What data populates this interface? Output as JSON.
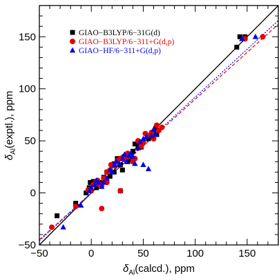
{
  "chart_data": {
    "type": "scatter",
    "xlabel": {
      "prefix": "δ",
      "sub": "Al",
      "suffix": "(calcd.), ppm"
    },
    "ylabel": {
      "prefix": "δ",
      "sub": "Al",
      "suffix": "(exptl.), ppm"
    },
    "xlim": [
      -50,
      180
    ],
    "ylim": [
      -50,
      180
    ],
    "xticks": [
      -50,
      0,
      50,
      100,
      150
    ],
    "yticks": [
      -50,
      0,
      50,
      100,
      150
    ],
    "grid": false,
    "legend_position": "top-left",
    "reference_line": {
      "slope": 1,
      "intercept": 0,
      "color": "#000000"
    },
    "series": [
      {
        "name": "GIAO−B3LYP/6−31G(d)",
        "marker": "square",
        "color": "#000000",
        "fit": null,
        "points": [
          [
            -33,
            -22
          ],
          [
            -15,
            -10
          ],
          [
            -5,
            0
          ],
          [
            -2,
            5
          ],
          [
            -1,
            10
          ],
          [
            2,
            11
          ],
          [
            4,
            10
          ],
          [
            5,
            5
          ],
          [
            8,
            10
          ],
          [
            10,
            8
          ],
          [
            12,
            15
          ],
          [
            15,
            20
          ],
          [
            18,
            16
          ],
          [
            20,
            26
          ],
          [
            22,
            28
          ],
          [
            25,
            33
          ],
          [
            28,
            27
          ],
          [
            30,
            22
          ],
          [
            32,
            35
          ],
          [
            35,
            30
          ],
          [
            38,
            32
          ],
          [
            40,
            40
          ],
          [
            42,
            47
          ],
          [
            45,
            45
          ],
          [
            48,
            44
          ],
          [
            50,
            49
          ],
          [
            55,
            52
          ],
          [
            60,
            58
          ],
          [
            62,
            62
          ],
          [
            63,
            56
          ],
          [
            140,
            140
          ],
          [
            143,
            150
          ],
          [
            148,
            150
          ],
          [
            28,
            2
          ],
          [
            22,
            20
          ]
        ]
      },
      {
        "name": "GIAO−B3LYP/6−311+G(d,p)",
        "marker": "circle",
        "color": "#e60000",
        "fit": {
          "slope": 0.9,
          "intercept": 0,
          "style": "dashed"
        },
        "points": [
          [
            -38,
            -33
          ],
          [
            -15,
            -13
          ],
          [
            -3,
            3
          ],
          [
            0,
            2
          ],
          [
            2,
            8
          ],
          [
            4,
            10
          ],
          [
            6,
            12
          ],
          [
            8,
            8
          ],
          [
            10,
            7
          ],
          [
            12,
            14
          ],
          [
            15,
            20
          ],
          [
            18,
            22
          ],
          [
            19,
            27
          ],
          [
            22,
            26
          ],
          [
            25,
            31
          ],
          [
            28,
            33
          ],
          [
            30,
            34
          ],
          [
            32,
            32
          ],
          [
            34,
            35
          ],
          [
            35,
            38
          ],
          [
            38,
            35
          ],
          [
            40,
            30
          ],
          [
            42,
            33
          ],
          [
            45,
            50
          ],
          [
            48,
            45
          ],
          [
            50,
            48
          ],
          [
            52,
            57
          ],
          [
            55,
            55
          ],
          [
            58,
            58
          ],
          [
            60,
            52
          ],
          [
            63,
            65
          ],
          [
            65,
            60
          ],
          [
            68,
            63
          ],
          [
            10,
            -15
          ],
          [
            15,
            10
          ],
          [
            28,
            2
          ],
          [
            148,
            148
          ],
          [
            165,
            150
          ]
        ]
      },
      {
        "name": "GIAO−HF/6−311+G(d,p)",
        "marker": "triangle",
        "color": "#0000e6",
        "fit": {
          "slope": 0.92,
          "intercept": 0,
          "style": "dotted"
        },
        "points": [
          [
            -27,
            -33
          ],
          [
            -10,
            -12
          ],
          [
            -2,
            2
          ],
          [
            0,
            5
          ],
          [
            3,
            8
          ],
          [
            5,
            12
          ],
          [
            7,
            10
          ],
          [
            10,
            6
          ],
          [
            12,
            10
          ],
          [
            15,
            14
          ],
          [
            18,
            22
          ],
          [
            20,
            20
          ],
          [
            22,
            27
          ],
          [
            24,
            30
          ],
          [
            27,
            28
          ],
          [
            30,
            33
          ],
          [
            32,
            37
          ],
          [
            34,
            30
          ],
          [
            36,
            36
          ],
          [
            38,
            38
          ],
          [
            40,
            35
          ],
          [
            42,
            28
          ],
          [
            45,
            43
          ],
          [
            47,
            49
          ],
          [
            50,
            52
          ],
          [
            53,
            54
          ],
          [
            55,
            23
          ],
          [
            58,
            55
          ],
          [
            60,
            61
          ],
          [
            62,
            56
          ],
          [
            50,
            27
          ],
          [
            145,
            148
          ],
          [
            158,
            150
          ]
        ]
      }
    ]
  }
}
